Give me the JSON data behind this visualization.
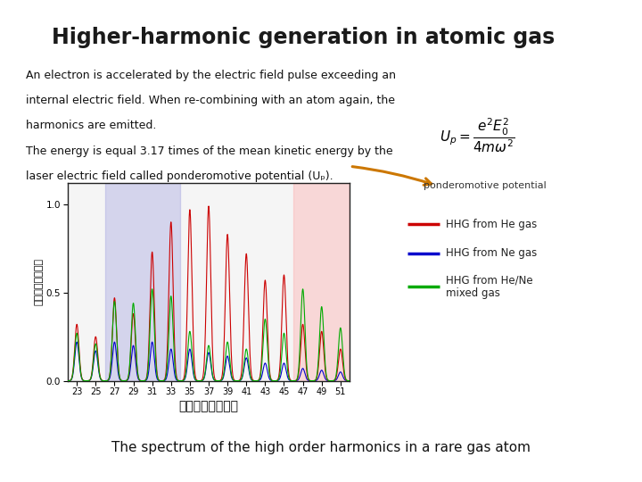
{
  "title": "Higher-harmonic generation in atomic gas",
  "bg_color": "#ffffff",
  "bottom_bar_color": "#c8601a",
  "bottom_bar_top_color": "#d4891e",
  "text_lines": [
    "An electron is accelerated by the electric field pulse exceeding an",
    "internal electric field. When re-combining with an atom again, the",
    "harmonics are emitted.",
    "The energy is equal 3.17 times of the mean kinetic energy by the",
    "laser electric field called ponderomotive potential (Uₚ)."
  ],
  "bottom_text": "The spectrum of the high order harmonics in a rare gas atom",
  "xlabel": "高次高調波の次数",
  "ylabel": "高次高調波の強度",
  "xlim": [
    22,
    52
  ],
  "ylim": [
    0.0,
    1.12
  ],
  "yticks": [
    0.0,
    0.5,
    1.0
  ],
  "xticks": [
    23,
    25,
    27,
    29,
    31,
    33,
    35,
    37,
    39,
    41,
    43,
    45,
    47,
    49,
    51
  ],
  "blue_region": [
    26,
    34
  ],
  "pink_region": [
    46,
    52
  ],
  "legend_items": [
    {
      "label": "HHG from He gas",
      "color": "#cc0000"
    },
    {
      "label": "HHG from Ne gas",
      "color": "#0000cc"
    },
    {
      "label": "HHG from He/Ne\nmixed gas",
      "color": "#00aa00"
    }
  ],
  "harmonic_orders": [
    23,
    25,
    27,
    29,
    31,
    33,
    35,
    37,
    39,
    41,
    43,
    45,
    47,
    49,
    51
  ],
  "He_peaks": [
    0.32,
    0.25,
    0.47,
    0.38,
    0.73,
    0.9,
    0.97,
    0.99,
    0.83,
    0.72,
    0.57,
    0.6,
    0.32,
    0.28,
    0.18
  ],
  "Ne_peaks": [
    0.22,
    0.17,
    0.22,
    0.2,
    0.22,
    0.18,
    0.18,
    0.16,
    0.14,
    0.13,
    0.1,
    0.1,
    0.07,
    0.06,
    0.05
  ],
  "HeNe_peaks": [
    0.27,
    0.21,
    0.45,
    0.44,
    0.52,
    0.48,
    0.28,
    0.2,
    0.22,
    0.18,
    0.35,
    0.27,
    0.52,
    0.42,
    0.3
  ],
  "sigma": 0.22
}
